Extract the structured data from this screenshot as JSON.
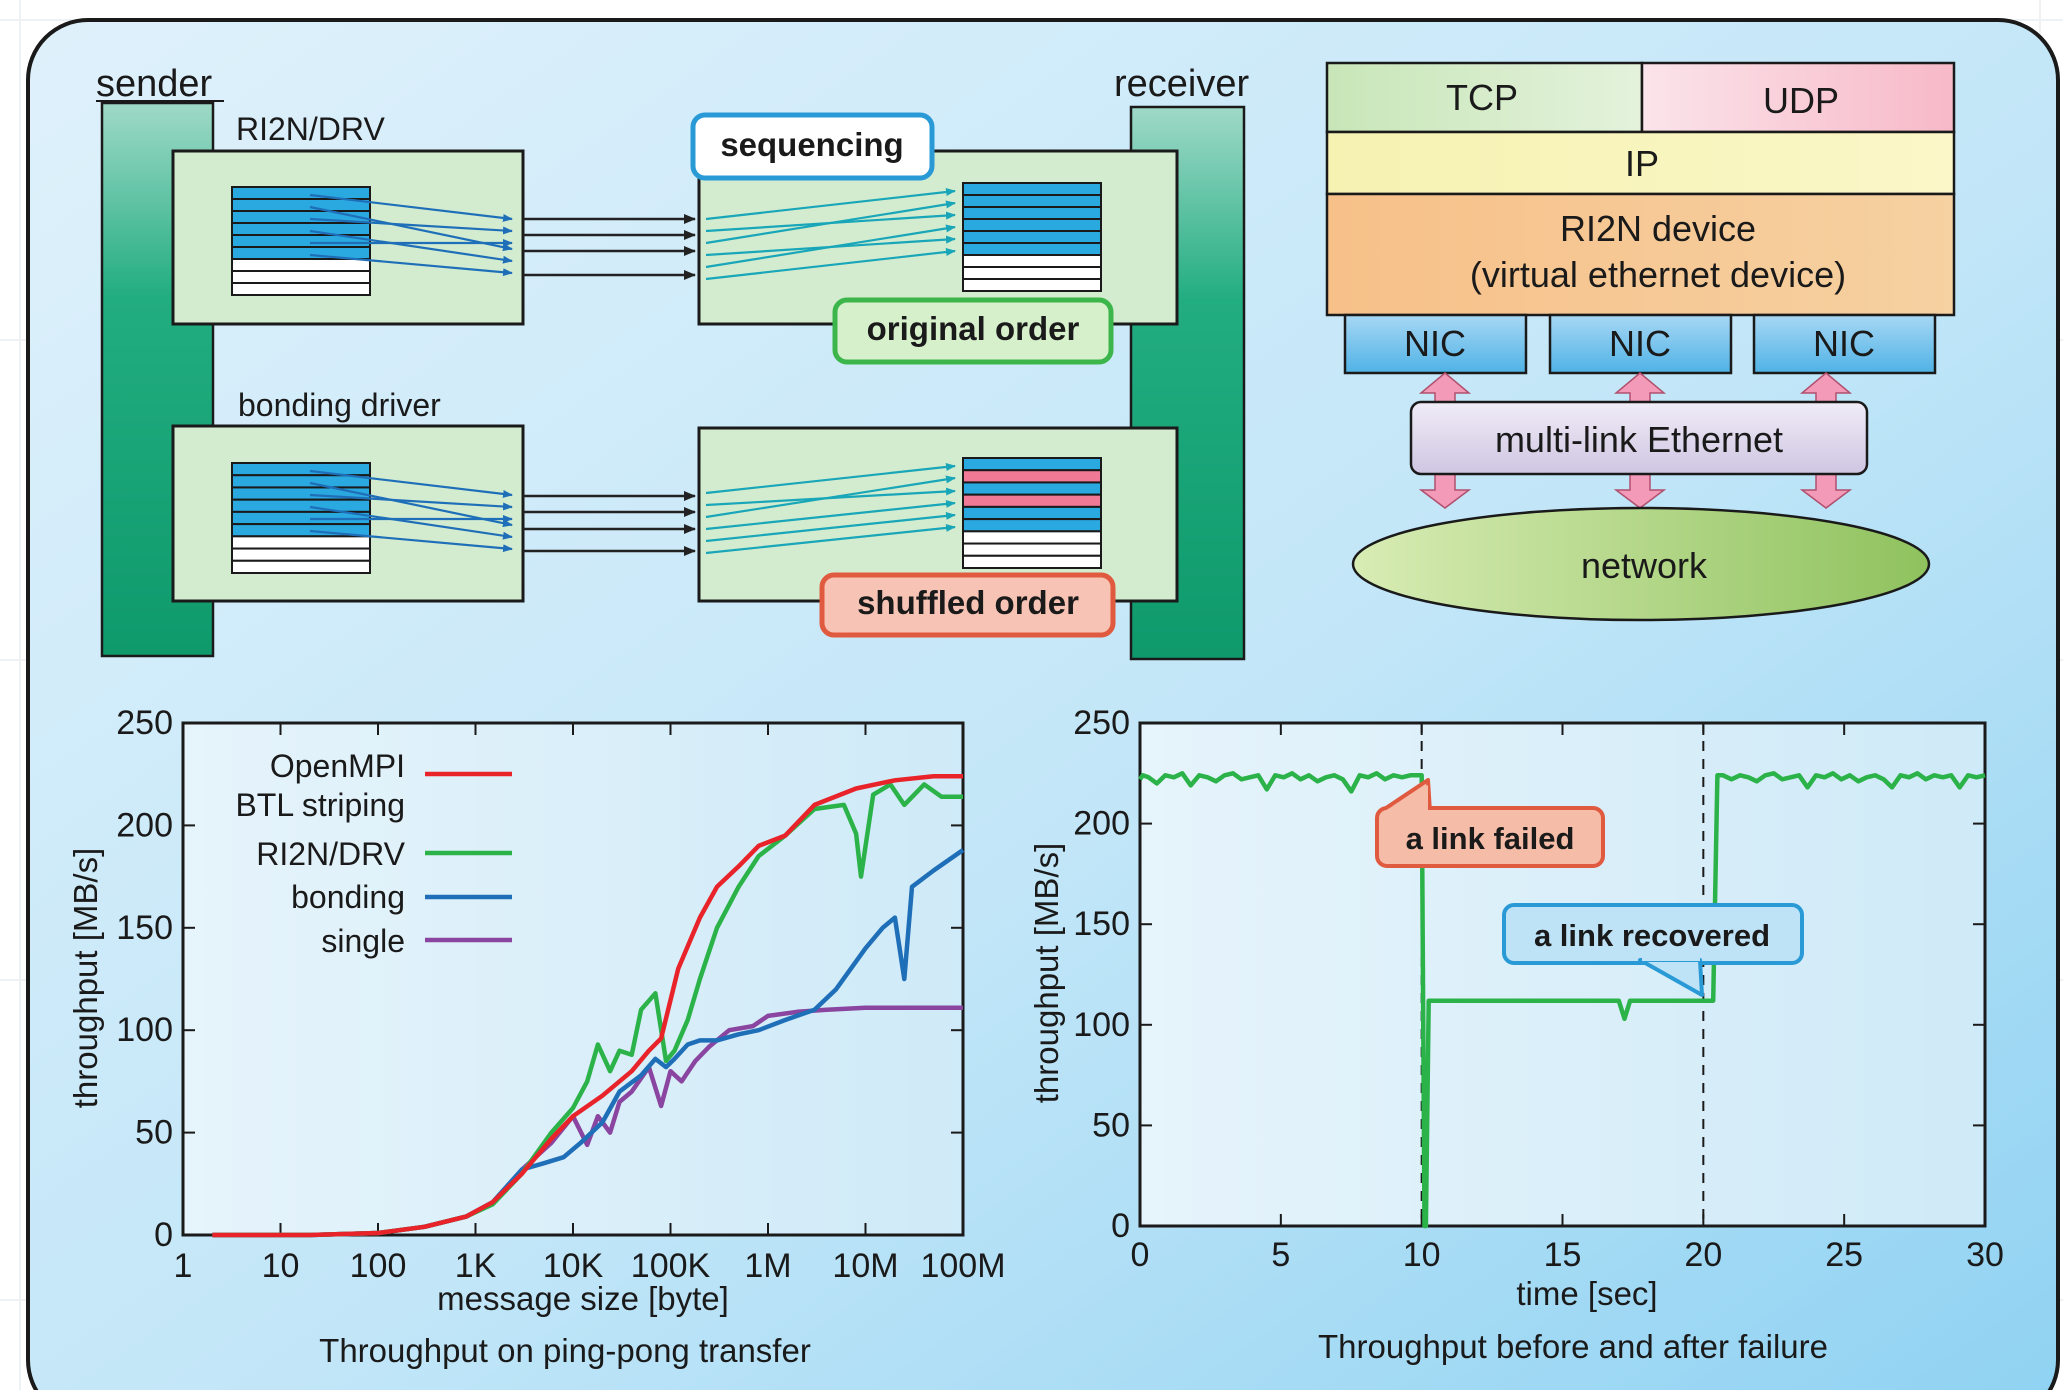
{
  "colors": {
    "teal": "#1aa57a",
    "panel_green": "#d3ecd0",
    "cell_blue": "#2aa8e0",
    "cell_pink": "#f07a96",
    "badge_blue": "#2a9ad6",
    "badge_green": "#3cb64a",
    "badge_red": "#e05a40",
    "openmpi": "#e8232a",
    "ri2n": "#2bb34a",
    "bonding": "#1f6fb8",
    "single": "#8a45a0"
  },
  "diagram": {
    "sender_label": "sender",
    "receiver_label": "receiver",
    "ri2n_drv_label": "RI2N/DRV",
    "bonding_driver_label": "bonding driver",
    "sequencing_badge": "sequencing",
    "original_order_badge": "original order",
    "shuffled_order_badge": "shuffled order"
  },
  "stack": {
    "tcp": "TCP",
    "udp": "UDP",
    "ip": "IP",
    "device_line1": "RI2N device",
    "device_line2": "(virtual ethernet device)",
    "nics": [
      "NIC",
      "NIC",
      "NIC"
    ],
    "multilink": "multi-link Ethernet",
    "network": "network"
  },
  "chart_data": [
    {
      "type": "line",
      "title": "Throughput on ping-pong transfer",
      "xlabel": "message size [byte]",
      "ylabel": "throughput [MB/s]",
      "x_scale": "log",
      "xlim": [
        1,
        100000000
      ],
      "ylim": [
        0,
        250
      ],
      "x_ticks": [
        1,
        10,
        100,
        1000,
        10000,
        100000,
        1000000,
        10000000,
        100000000
      ],
      "x_tick_labels": [
        "1",
        "10",
        "100",
        "1K",
        "10K",
        "100K",
        "1M",
        "10M",
        "100M"
      ],
      "y_ticks": [
        0,
        50,
        100,
        150,
        200,
        250
      ],
      "legend_position": "top-left",
      "series": [
        {
          "name": "OpenMPI\nBTL striping",
          "color_key": "openmpi",
          "x": [
            2,
            5,
            20,
            100,
            300,
            800,
            1500,
            3000,
            6000,
            10000,
            20000,
            40000,
            60000,
            80000,
            120000,
            200000,
            300000,
            500000,
            800000,
            1500000,
            3000000,
            8000000,
            20000000,
            50000000,
            100000000
          ],
          "values": [
            0,
            0,
            0,
            1,
            4,
            9,
            16,
            30,
            47,
            58,
            68,
            80,
            90,
            96,
            130,
            155,
            170,
            180,
            190,
            195,
            210,
            218,
            222,
            224,
            224
          ]
        },
        {
          "name": "RI2N/DRV",
          "color_key": "ri2n",
          "x": [
            2,
            5,
            20,
            100,
            300,
            800,
            1500,
            3000,
            6000,
            10000,
            14000,
            18000,
            24000,
            30000,
            40000,
            50000,
            70000,
            90000,
            110000,
            150000,
            200000,
            300000,
            500000,
            800000,
            1500000,
            3000000,
            6000000,
            8000000,
            9000000,
            12000000,
            18000000,
            25000000,
            40000000,
            60000000,
            100000000
          ],
          "values": [
            0,
            0,
            0,
            1,
            4,
            9,
            15,
            30,
            50,
            62,
            75,
            93,
            80,
            90,
            88,
            110,
            118,
            85,
            90,
            105,
            125,
            150,
            170,
            185,
            195,
            208,
            210,
            196,
            175,
            215,
            220,
            210,
            220,
            214,
            214
          ]
        },
        {
          "name": "bonding",
          "color_key": "bonding",
          "x": [
            2,
            5,
            20,
            100,
            300,
            800,
            1500,
            3000,
            5000,
            8000,
            12000,
            20000,
            30000,
            50000,
            70000,
            90000,
            110000,
            150000,
            200000,
            300000,
            500000,
            800000,
            1500000,
            3000000,
            5000000,
            10000000,
            15000000,
            20000000,
            25000000,
            30000000,
            50000000,
            100000000
          ],
          "values": [
            0,
            0,
            0,
            1,
            4,
            9,
            16,
            32,
            35,
            38,
            45,
            55,
            70,
            78,
            86,
            82,
            86,
            93,
            95,
            95,
            98,
            100,
            105,
            110,
            120,
            140,
            150,
            155,
            125,
            170,
            178,
            188
          ]
        },
        {
          "name": "single",
          "color_key": "single",
          "x": [
            2,
            5,
            20,
            100,
            300,
            800,
            1500,
            3000,
            6000,
            10000,
            14000,
            18000,
            24000,
            30000,
            40000,
            60000,
            80000,
            100000,
            130000,
            180000,
            250000,
            400000,
            700000,
            1000000,
            2000000,
            4000000,
            10000000,
            30000000,
            100000000
          ],
          "values": [
            0,
            0,
            0,
            1,
            4,
            9,
            16,
            32,
            45,
            58,
            44,
            58,
            50,
            65,
            70,
            82,
            63,
            80,
            75,
            85,
            92,
            100,
            102,
            107,
            109,
            110,
            111,
            111,
            111
          ]
        }
      ]
    },
    {
      "type": "line",
      "title": "Throughput before and after failure",
      "xlabel": "time [sec]",
      "ylabel": "throughput [MB/s]",
      "xlim": [
        0,
        30
      ],
      "ylim": [
        0,
        250
      ],
      "x_ticks": [
        0,
        5,
        10,
        15,
        20,
        25,
        30
      ],
      "y_ticks": [
        0,
        50,
        100,
        150,
        200,
        250
      ],
      "event_lines": [
        10,
        20
      ],
      "annotations": [
        "a link failed",
        "a link recovered"
      ],
      "series": [
        {
          "color_key": "ri2n",
          "x": [
            0,
            0.1,
            0.3,
            0.6,
            0.9,
            1.2,
            1.5,
            1.8,
            2.1,
            2.4,
            2.7,
            3.0,
            3.3,
            3.6,
            3.9,
            4.2,
            4.5,
            4.8,
            5.1,
            5.4,
            5.7,
            6.0,
            6.3,
            6.6,
            6.9,
            7.2,
            7.5,
            7.8,
            8.1,
            8.4,
            8.7,
            9.0,
            9.3,
            9.6,
            9.95,
            10.0,
            10.1,
            10.15,
            10.25,
            10.5,
            11,
            12,
            13,
            14,
            15,
            16,
            17,
            17.2,
            17.4,
            18,
            19,
            20,
            20.35,
            20.5,
            20.7,
            21,
            21.3,
            21.6,
            21.9,
            22.2,
            22.5,
            22.8,
            23.1,
            23.4,
            23.7,
            24.0,
            24.3,
            24.6,
            24.9,
            25.2,
            25.5,
            25.8,
            26.1,
            26.4,
            26.7,
            27.0,
            27.3,
            27.6,
            27.9,
            28.2,
            28.5,
            28.8,
            29.1,
            29.4,
            29.7,
            30.0
          ],
          "values": [
            222,
            224,
            223,
            220,
            224,
            223,
            225,
            219,
            224,
            223,
            221,
            224,
            225,
            222,
            223,
            224,
            217,
            224,
            223,
            225,
            222,
            224,
            221,
            223,
            224,
            222,
            216,
            224,
            223,
            225,
            222,
            224,
            223,
            224,
            224,
            224,
            0,
            0,
            112,
            112,
            112,
            112,
            112,
            112,
            112,
            112,
            112,
            103,
            112,
            112,
            112,
            112,
            112,
            224,
            224,
            222,
            224,
            223,
            221,
            224,
            225,
            222,
            223,
            224,
            218,
            224,
            223,
            225,
            222,
            224,
            221,
            223,
            224,
            222,
            218,
            224,
            223,
            225,
            222,
            224,
            223,
            224,
            218,
            224,
            223,
            224
          ]
        }
      ]
    }
  ]
}
